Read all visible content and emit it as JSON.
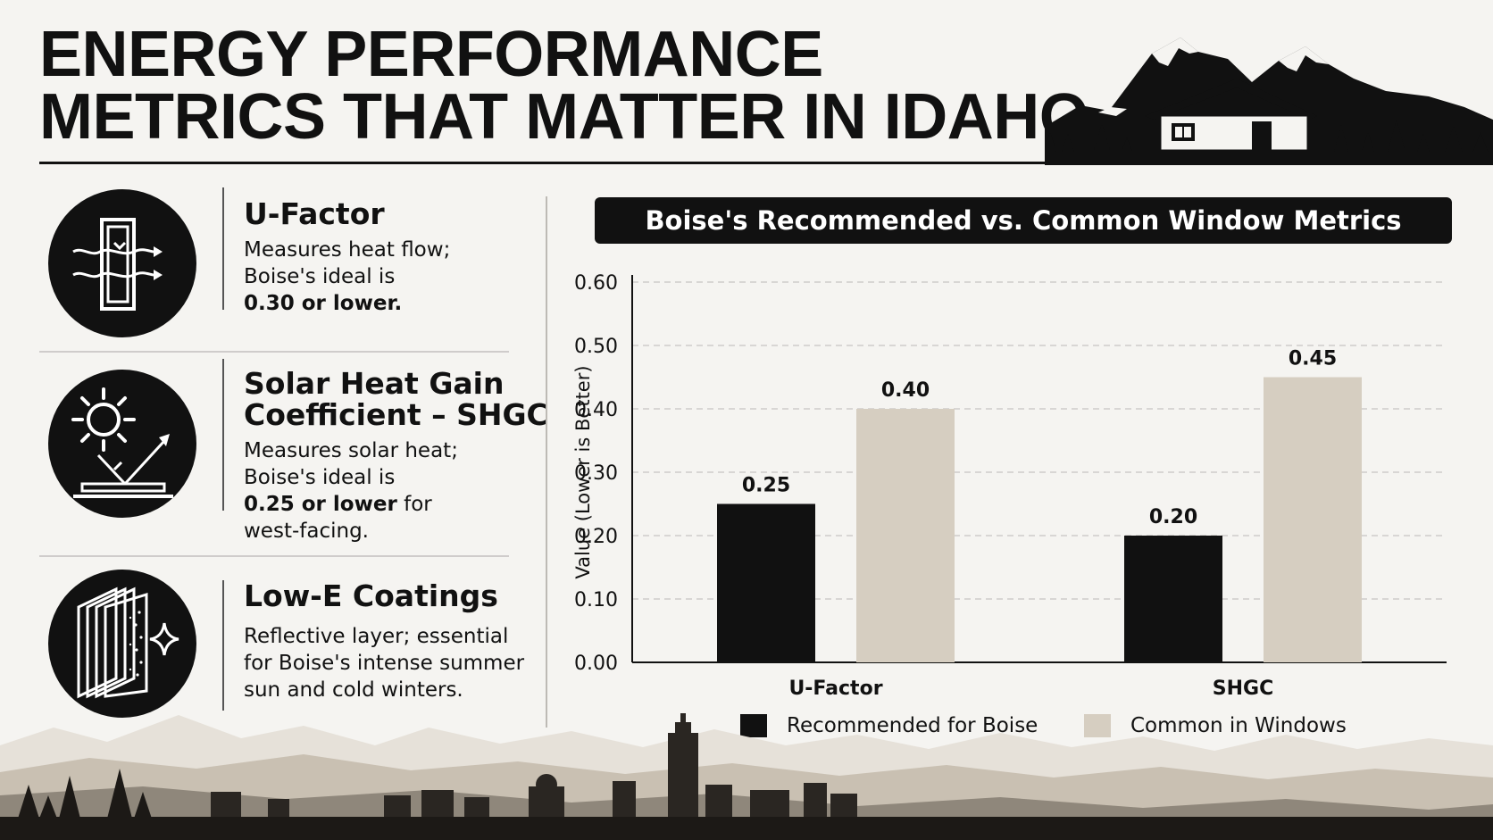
{
  "page": {
    "title_lines": [
      "ENERGY PERFORMANCE",
      "METRICS THAT MATTER IN IDAHO"
    ]
  },
  "metrics": [
    {
      "title_lines": [
        "U-Factor"
      ],
      "desc_lines": [
        {
          "text": "Measures heat flow;",
          "bold": ""
        },
        {
          "text": "Boise's ideal is",
          "bold": ""
        },
        {
          "text": "",
          "bold": "0.30 or lower."
        }
      ],
      "icon": "window-heat-flow-icon"
    },
    {
      "title_lines": [
        "Solar Heat Gain",
        "Coefficient – SHGC"
      ],
      "desc_lines": [
        {
          "text": "Measures solar heat;",
          "bold": ""
        },
        {
          "text": "Boise's ideal is",
          "bold": ""
        },
        {
          "bold": "0.25 or lower",
          "text": " for"
        },
        {
          "text": "west-facing.",
          "bold": ""
        }
      ],
      "icon": "sun-reflection-icon"
    },
    {
      "title_lines": [
        "Low-E Coatings"
      ],
      "desc_lines": [
        {
          "text": "Reflective layer; essential",
          "bold": ""
        },
        {
          "text": "for Boise's intense summer",
          "bold": ""
        },
        {
          "text": "sun and cold winters.",
          "bold": ""
        }
      ],
      "icon": "coated-glass-panes-icon"
    }
  ],
  "chart_header": "Boise's Recommended vs. Common Window Metrics",
  "chart_data": {
    "type": "bar",
    "title": "Boise's Recommended vs. Common Window Metrics",
    "categories": [
      "U-Factor",
      "SHGC"
    ],
    "series": [
      {
        "name": "Recommended for Boise",
        "values": [
          0.25,
          0.2
        ],
        "labels": [
          "0.25",
          "0.20"
        ],
        "color": "#111111"
      },
      {
        "name": "Common in Windows",
        "values": [
          0.4,
          0.45
        ],
        "labels": [
          "0.40",
          "0.45"
        ],
        "color": "#d6cec1"
      }
    ],
    "xlabel": "",
    "ylabel": "Value (Lower is Better)",
    "ylim": [
      0,
      0.6
    ],
    "yticks": [
      "0.00",
      "0.10",
      "0.20",
      "0.30",
      "0.40",
      "0.50",
      "0.60"
    ],
    "grid": true,
    "legend": "bottom"
  },
  "colors": {
    "background": "#f5f4f1",
    "ink": "#111111",
    "beige": "#d6cec1",
    "grid": "#cfcccb"
  }
}
